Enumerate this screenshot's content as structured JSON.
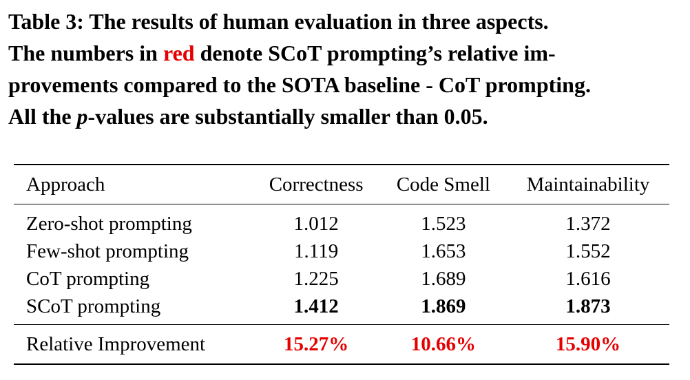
{
  "caption": {
    "line1": "Table 3: The results of human evaluation in three aspects.",
    "line2_pre": "The numbers in ",
    "line2_red": "red",
    "line2_post": " denote SCoT prompting’s relative im-",
    "line3": "provements compared to the SOTA baseline - CoT prompting.",
    "line4_pre": "All the ",
    "line4_ital": "p",
    "line4_post": "-values are substantially smaller than 0.05."
  },
  "colors": {
    "highlight": "#e60000"
  },
  "table": {
    "headers": [
      "Approach",
      "Correctness",
      "Code Smell",
      "Maintainability"
    ],
    "rows": [
      {
        "approach": "Zero-shot prompting",
        "correctness": "1.012",
        "code_smell": "1.523",
        "maintainability": "1.372"
      },
      {
        "approach": "Few-shot prompting",
        "correctness": "1.119",
        "code_smell": "1.653",
        "maintainability": "1.552"
      },
      {
        "approach": "CoT prompting",
        "correctness": "1.225",
        "code_smell": "1.689",
        "maintainability": "1.616"
      },
      {
        "approach": "SCoT prompting",
        "correctness": "1.412",
        "code_smell": "1.869",
        "maintainability": "1.873"
      }
    ],
    "footer": {
      "approach": "Relative Improvement",
      "correctness": "15.27%",
      "code_smell": "10.66%",
      "maintainability": "15.90%"
    }
  }
}
